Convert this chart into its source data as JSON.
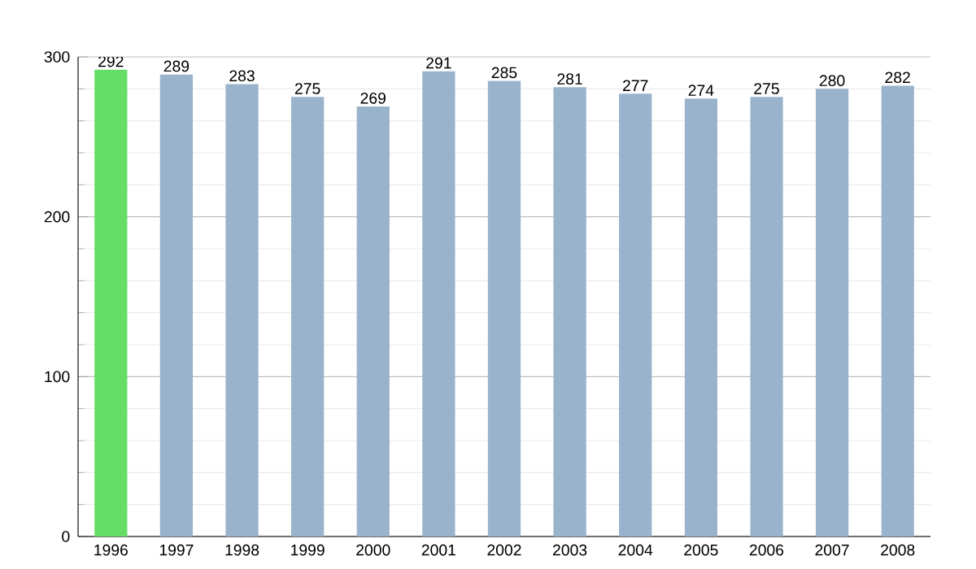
{
  "chart_data": {
    "type": "bar",
    "categories": [
      "1996",
      "1997",
      "1998",
      "1999",
      "2000",
      "2001",
      "2002",
      "2003",
      "2004",
      "2005",
      "2006",
      "2007",
      "2008"
    ],
    "values": [
      292,
      289,
      283,
      275,
      269,
      291,
      285,
      281,
      277,
      274,
      275,
      280,
      282
    ],
    "colors": [
      "#66dd66",
      "#9ab3cc",
      "#9ab3cc",
      "#9ab3cc",
      "#9ab3cc",
      "#9ab3cc",
      "#9ab3cc",
      "#9ab3cc",
      "#9ab3cc",
      "#9ab3cc",
      "#9ab3cc",
      "#9ab3cc",
      "#9ab3cc"
    ],
    "ylim": [
      0,
      300
    ],
    "yticks": [
      0,
      100,
      200,
      300
    ],
    "grid": "y",
    "data_labels": true
  }
}
